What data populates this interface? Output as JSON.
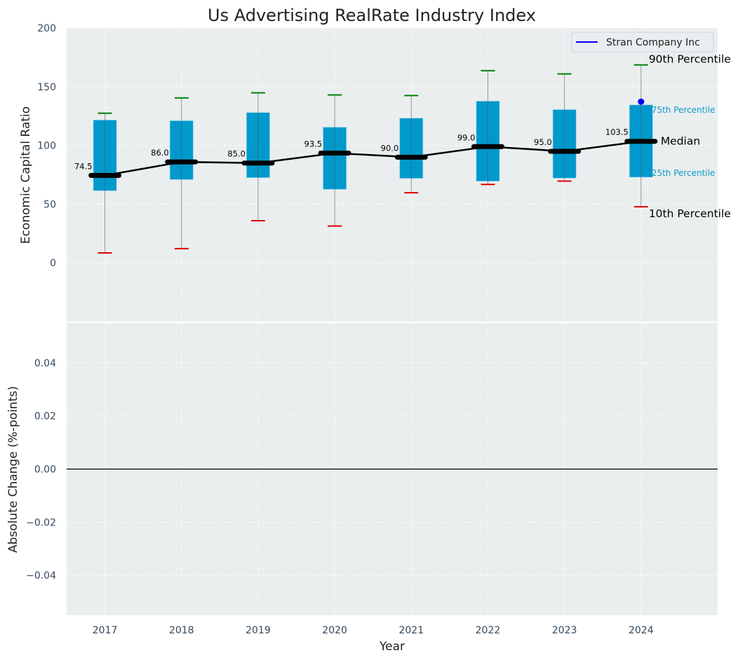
{
  "chart_data": {
    "type": "box",
    "title": "Us Advertising RealRate Industry Index",
    "xlabel": "Year",
    "categories": [
      "2017",
      "2018",
      "2019",
      "2020",
      "2021",
      "2022",
      "2023",
      "2024"
    ],
    "top_panel": {
      "ylabel": "Economic Capital Ratio",
      "ylim": [
        -50,
        200
      ],
      "yticks": [
        0,
        50,
        100,
        150,
        200
      ],
      "grid": true,
      "series": {
        "p10": [
          8.5,
          12.1,
          35.9,
          31.4,
          59.7,
          66.8,
          69.6,
          47.8
        ],
        "q1": [
          61.5,
          71.0,
          72.6,
          62.7,
          72.0,
          69.6,
          72.2,
          73.0
        ],
        "median": [
          74.5,
          86.0,
          85.0,
          93.5,
          90.0,
          99.0,
          95.0,
          103.5
        ],
        "q3": [
          121.6,
          121.0,
          128.0,
          115.5,
          123.2,
          137.7,
          130.5,
          134.5
        ],
        "p90": [
          127.4,
          140.5,
          144.8,
          143.0,
          142.5,
          163.7,
          160.9,
          168.6
        ]
      },
      "median_labels": [
        "74.5",
        "86.0",
        "85.0",
        "93.5",
        "90.0",
        "99.0",
        "95.0",
        "103.5"
      ],
      "company": {
        "name": "Stran Company Inc",
        "points": [
          {
            "x": "2024",
            "y": 137.3
          }
        ]
      },
      "legend": {
        "entries": [
          "Stran Company Inc"
        ],
        "placement": "top-right"
      },
      "annotations": {
        "p90": "90th Percentile",
        "q3": "75th Percentile",
        "median": "Median",
        "q1": "25th Percentile",
        "p10": "10th Percentile"
      }
    },
    "bottom_panel": {
      "ylabel": "Absolute Change (%-points)",
      "ylim": [
        -0.055,
        0.055
      ],
      "yticks": [
        -0.04,
        -0.02,
        0.0,
        0.02,
        0.04
      ],
      "ytick_labels": [
        "−0.04",
        "−0.02",
        "0.00",
        "0.02",
        "0.04"
      ],
      "reference_line": 0,
      "grid": true
    },
    "xlim": [
      2016.5,
      2025.0
    ],
    "colors": {
      "box": "#0099cc",
      "p90_cap": "#008000",
      "p10_cap": "#e00000",
      "median": "#000000",
      "company": "#0000ff",
      "panel_bg": "#eaeeef",
      "annot_small": "#0f9bc9"
    }
  }
}
